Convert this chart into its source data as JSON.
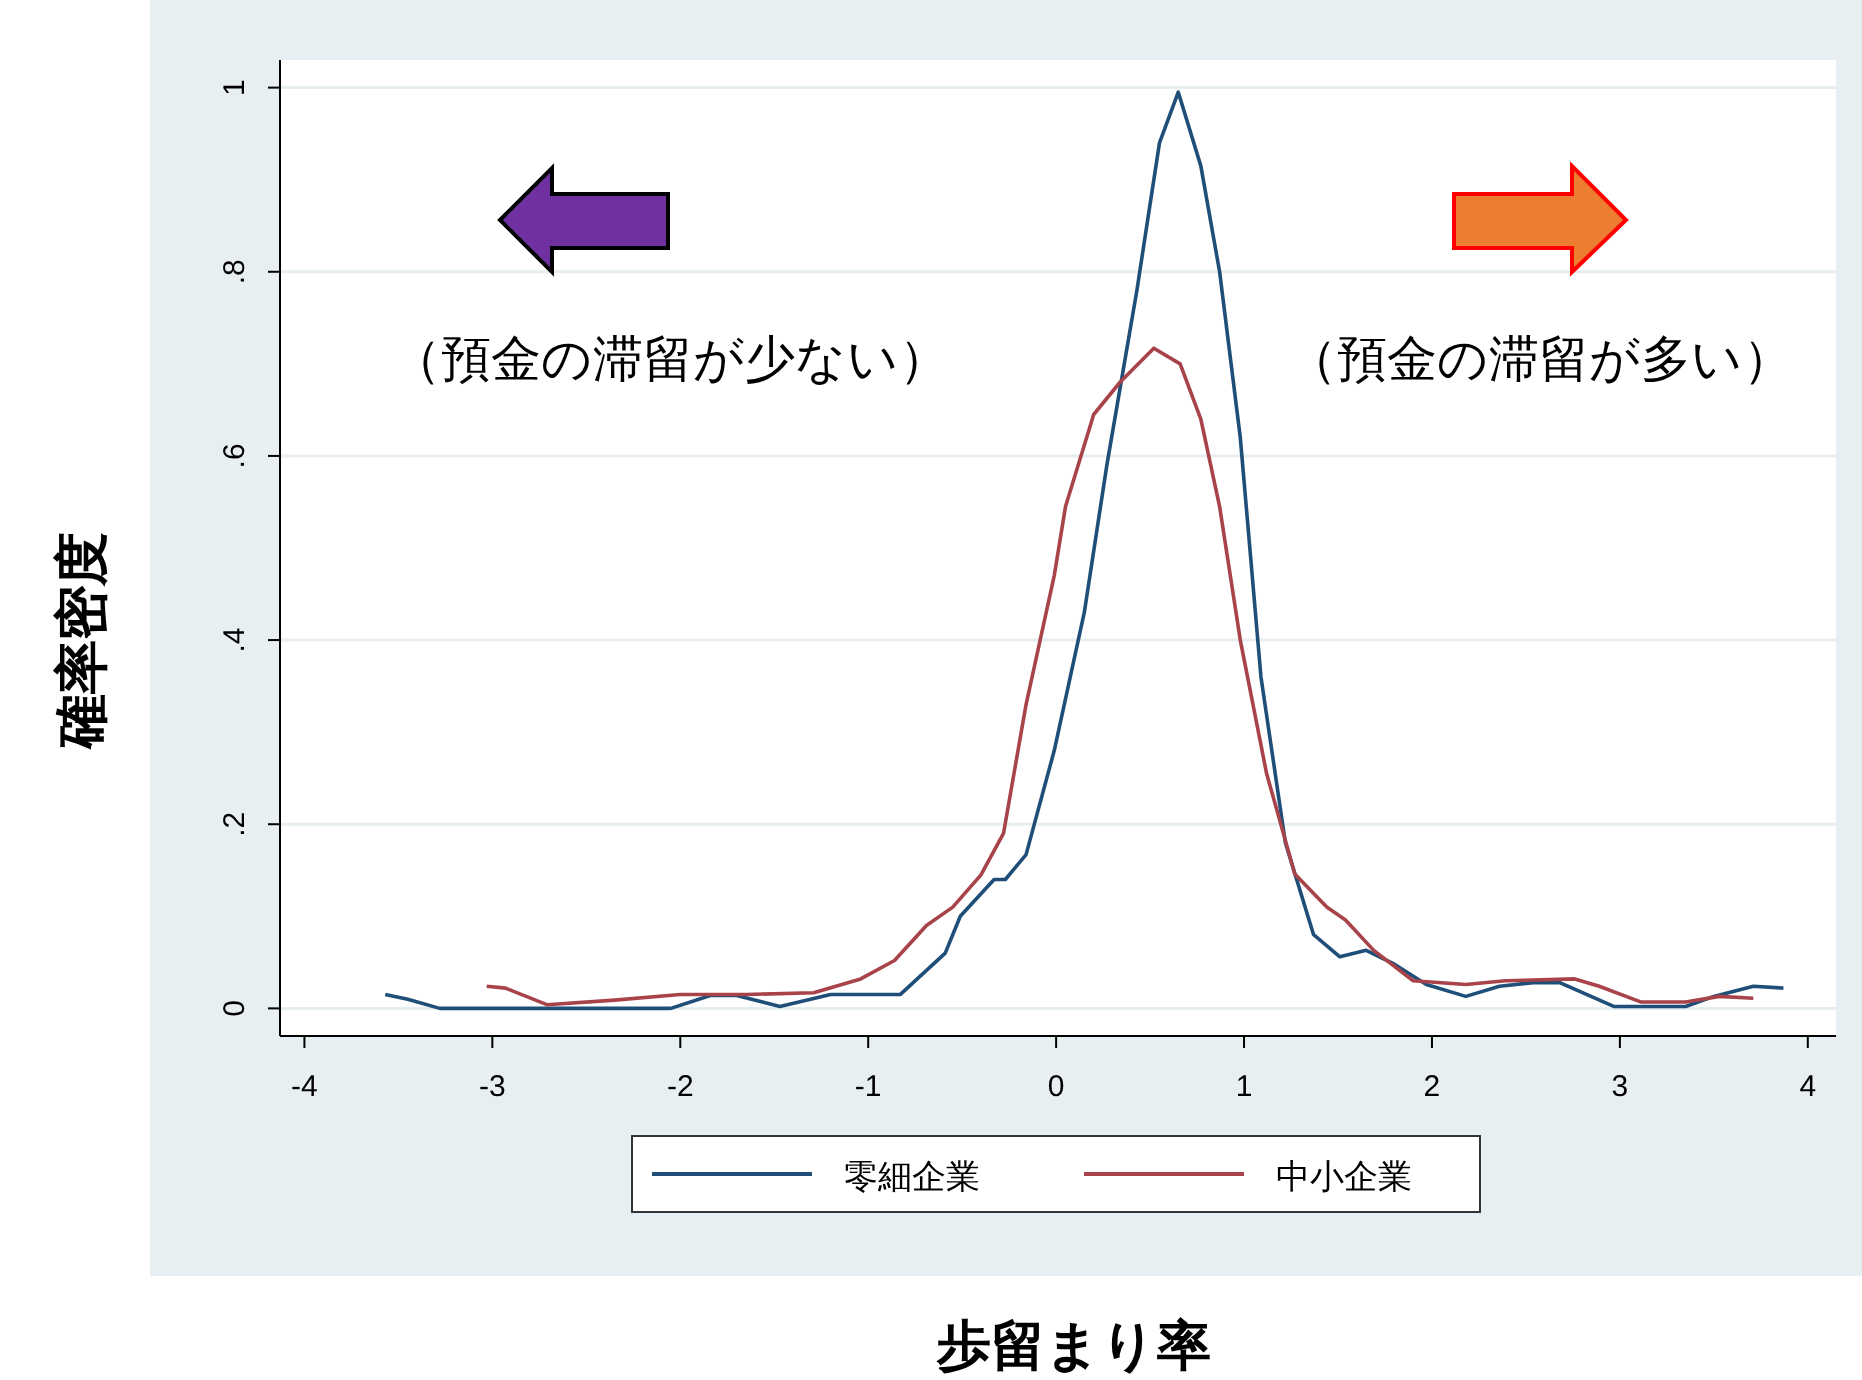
{
  "chart_data": {
    "type": "line",
    "xlabel": "歩留まり率",
    "ylabel": "確率密度",
    "annotations": [
      "（預金の滞留が少ない）",
      "（預金の滞留が多い）"
    ],
    "xlim": [
      -4.13,
      4.15
    ],
    "ylim": [
      -0.03,
      1.03
    ],
    "xticks": [
      -4,
      -3,
      -2,
      -1,
      0,
      1,
      2,
      3,
      4
    ],
    "yticks": [
      {
        "value": 0,
        "label": "0"
      },
      {
        "value": 0.2,
        "label": ".2"
      },
      {
        "value": 0.4,
        "label": ".4"
      },
      {
        "value": 0.6,
        "label": ".6"
      },
      {
        "value": 0.8,
        "label": ".8"
      },
      {
        "value": 1,
        "label": "1"
      }
    ],
    "grid": "y",
    "legend": "bottom",
    "series": [
      {
        "name": "零細企業",
        "color": "#1f4e79",
        "x": [
          -3.57,
          -3.45,
          -3.28,
          -2.5,
          -2.05,
          -1.84,
          -1.7,
          -1.47,
          -1.2,
          -1.0,
          -0.83,
          -0.59,
          -0.51,
          -0.33,
          -0.27,
          -0.16,
          -0.01,
          0.15,
          0.27,
          0.43,
          0.55,
          0.65,
          0.77,
          0.87,
          0.98,
          1.09,
          1.22,
          1.37,
          1.51,
          1.65,
          1.8,
          1.97,
          2.18,
          2.36,
          2.54,
          2.68,
          2.97,
          3.35,
          3.5,
          3.71,
          3.87
        ],
        "values": [
          0.015,
          0.01,
          0,
          0,
          0,
          0.014,
          0.014,
          0.002,
          0.015,
          0.015,
          0.015,
          0.06,
          0.1,
          0.14,
          0.14,
          0.167,
          0.28,
          0.43,
          0.59,
          0.78,
          0.94,
          0.995,
          0.915,
          0.8,
          0.62,
          0.36,
          0.18,
          0.08,
          0.056,
          0.063,
          0.048,
          0.026,
          0.013,
          0.024,
          0.028,
          0.028,
          0.002,
          0.002,
          0.013,
          0.024,
          0.022
        ]
      },
      {
        "name": "中小企業",
        "color": "#a8434a",
        "x": [
          -3.03,
          -2.93,
          -2.71,
          -2.35,
          -2.0,
          -1.65,
          -1.29,
          -1.04,
          -0.86,
          -0.69,
          -0.55,
          -0.4,
          -0.28,
          -0.16,
          -0.01,
          0.05,
          0.2,
          0.34,
          0.52,
          0.66,
          0.77,
          0.87,
          0.98,
          1.12,
          1.27,
          1.44,
          1.54,
          1.69,
          1.9,
          2.18,
          2.39,
          2.76,
          2.89,
          3.11,
          3.35,
          3.53,
          3.71
        ],
        "values": [
          0.024,
          0.022,
          0.004,
          0.009,
          0.015,
          0.015,
          0.017,
          0.032,
          0.052,
          0.09,
          0.11,
          0.145,
          0.19,
          0.33,
          0.47,
          0.545,
          0.645,
          0.68,
          0.717,
          0.7,
          0.64,
          0.545,
          0.4,
          0.255,
          0.146,
          0.11,
          0.096,
          0.063,
          0.03,
          0.026,
          0.03,
          0.032,
          0.024,
          0.007,
          0.007,
          0.013,
          0.011
        ]
      }
    ]
  }
}
